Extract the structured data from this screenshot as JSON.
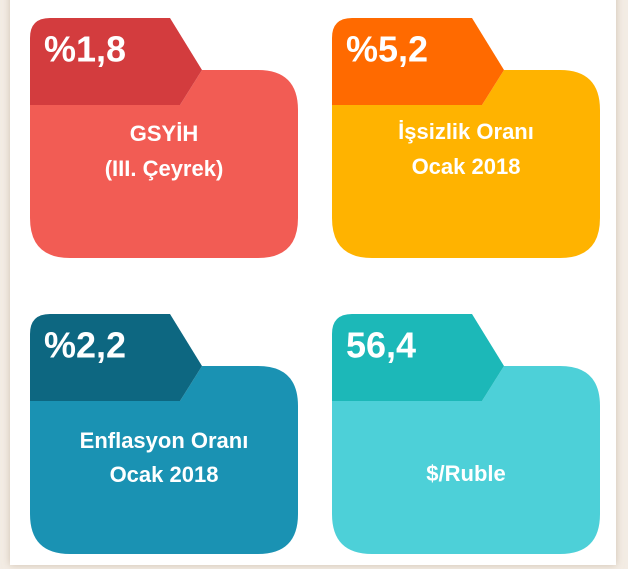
{
  "tiles": [
    {
      "value": "%1,8",
      "label": [
        "GSYİH",
        "(III. Çeyrek)"
      ]
    },
    {
      "value": "%5,2",
      "label": [
        "İşsizlik Oranı",
        "Ocak 2018"
      ]
    },
    {
      "value": "%2,2",
      "label": [
        "Enflasyon Oranı",
        "Ocak 2018"
      ]
    },
    {
      "value": "56,4",
      "label": [
        "$/Ruble"
      ]
    }
  ]
}
